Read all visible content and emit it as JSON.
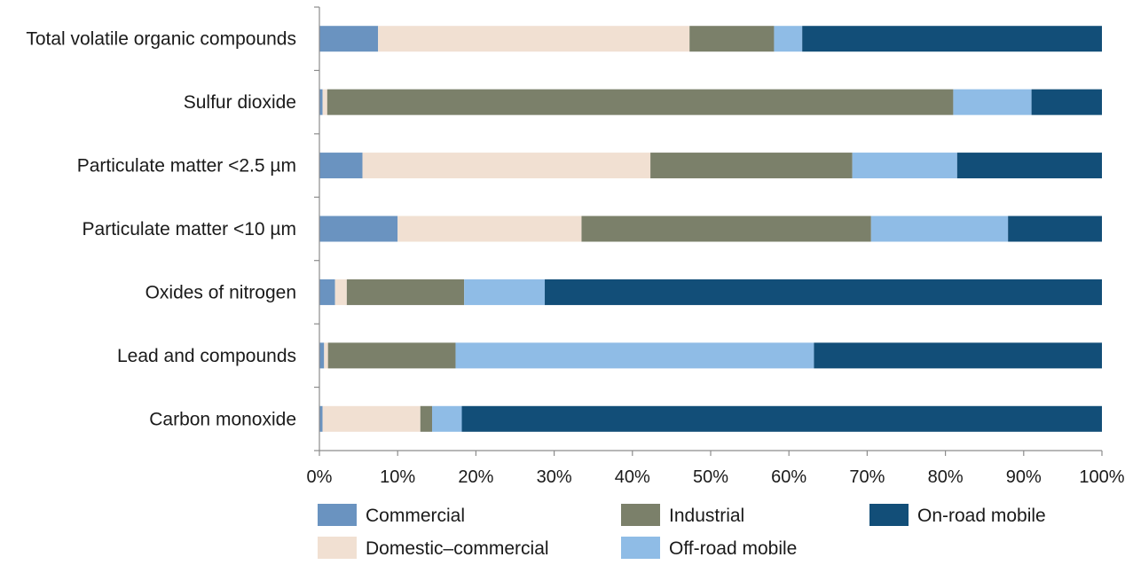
{
  "chart_data": {
    "type": "bar",
    "orientation": "horizontal",
    "stacked": true,
    "categories": [
      "Total volatile organic compounds",
      "Sulfur dioxide",
      "Particulate matter <2.5 µm",
      "Particulate matter  <10 µm",
      "Oxides of nitrogen",
      "Lead and compounds",
      "Carbon monoxide"
    ],
    "series": [
      {
        "name": "Commercial",
        "color": "#6a93c0",
        "values": [
          7.5,
          0.4,
          5.5,
          10.0,
          2.0,
          0.6,
          0.4
        ]
      },
      {
        "name": "Domestic–commercial",
        "color": "#f1e0d2",
        "values": [
          39.8,
          0.6,
          36.8,
          23.5,
          1.5,
          0.5,
          12.5
        ]
      },
      {
        "name": "Industrial",
        "color": "#7b806a",
        "values": [
          10.8,
          80.0,
          25.8,
          37.0,
          15.0,
          16.3,
          1.5
        ]
      },
      {
        "name": "Off-road mobile",
        "color": "#8fbce6",
        "values": [
          3.6,
          10.0,
          13.4,
          17.5,
          10.3,
          45.8,
          3.8
        ]
      },
      {
        "name": "On-road mobile",
        "color": "#124e78",
        "values": [
          38.3,
          9.0,
          18.5,
          12.0,
          71.2,
          36.8,
          81.8
        ]
      }
    ],
    "x_ticks": [
      "0%",
      "10%",
      "20%",
      "30%",
      "40%",
      "50%",
      "60%",
      "70%",
      "80%",
      "90%",
      "100%"
    ],
    "xlim": [
      0,
      100
    ],
    "grid": false,
    "legend_position": "bottom",
    "title": "",
    "xlabel": "",
    "ylabel": ""
  }
}
